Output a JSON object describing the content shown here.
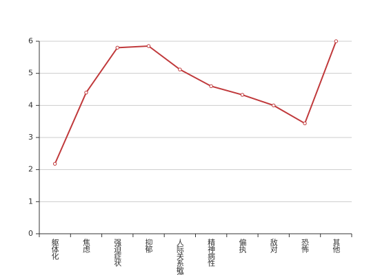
{
  "chart_data": {
    "type": "line",
    "categories": [
      "躯体化",
      "焦虑",
      "强迫症状",
      "抑郁",
      "人际关系敏感",
      "精神病性",
      "偏执",
      "敌对",
      "恐怖",
      "其他"
    ],
    "values": [
      2.18,
      4.4,
      5.8,
      5.85,
      5.12,
      4.6,
      4.33,
      4.0,
      3.44,
      6.0
    ],
    "color": "#c0393b",
    "ylim": [
      0,
      6
    ],
    "yticks": [
      0,
      1,
      2,
      3,
      4,
      5,
      6
    ],
    "grid": true
  }
}
